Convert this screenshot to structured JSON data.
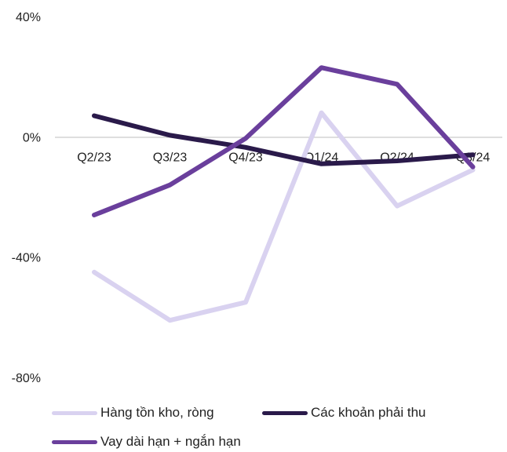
{
  "chart_data": {
    "type": "line",
    "title": "",
    "xlabel": "",
    "ylabel": "",
    "categories": [
      "Q2/23",
      "Q3/23",
      "Q4/23",
      "Q1/24",
      "Q2/24",
      "Q3/24"
    ],
    "y_ticks": [
      "40%",
      "0%",
      "-40%",
      "-80%"
    ],
    "y_tick_values": [
      40,
      0,
      -40,
      -80
    ],
    "ylim": [
      -80,
      40
    ],
    "grid": false,
    "legend_position": "bottom",
    "series": [
      {
        "name": "Hàng tồn kho, ròng",
        "color": "#d9d2f0",
        "values": [
          -45,
          -61,
          -55,
          8,
          -23,
          -11
        ]
      },
      {
        "name": "Các khoản phải thu",
        "color": "#2a1a4a",
        "values": [
          7,
          0.5,
          -3.5,
          -9,
          -8,
          -6
        ]
      },
      {
        "name": "Vay dài hạn + ngắn hạn",
        "color": "#6a3f9c",
        "values": [
          -26,
          -16,
          -0.5,
          23,
          17.5,
          -10
        ]
      }
    ]
  }
}
